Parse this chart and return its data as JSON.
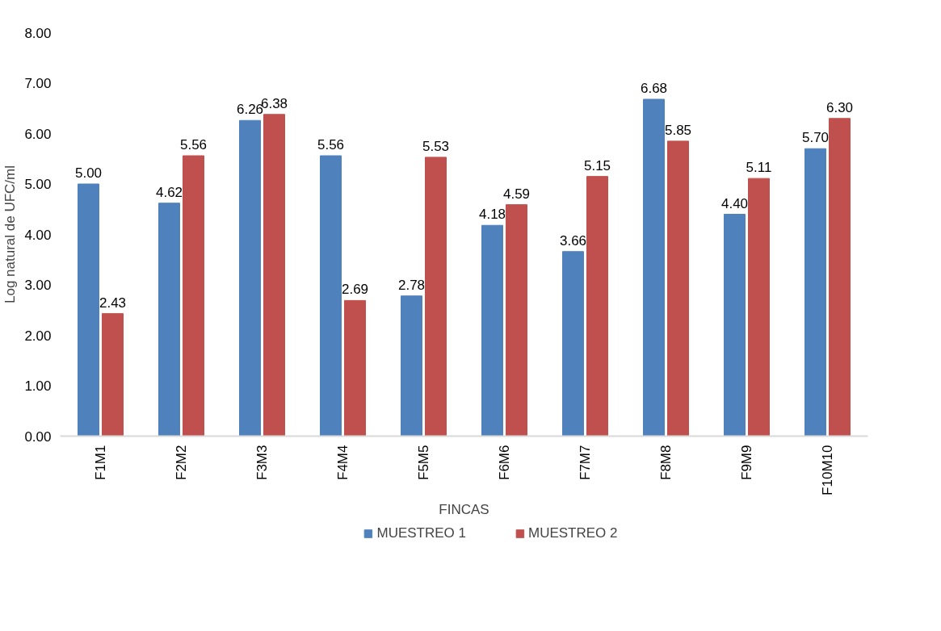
{
  "chart_data": {
    "type": "bar",
    "xlabel": "FINCAS",
    "ylabel": "Log natural de UFC/ml",
    "categories": [
      "F1M1",
      "F2M2",
      "F3M3",
      "F4M4",
      "F5M5",
      "F6M6",
      "F7M7",
      "F8M8",
      "F9M9",
      "F10M10"
    ],
    "series": [
      {
        "name": "MUESTREO 1",
        "color": "#4f81bd",
        "values": [
          5.0,
          4.62,
          6.26,
          5.56,
          2.78,
          4.18,
          3.66,
          6.68,
          4.4,
          5.7
        ],
        "value_labels": [
          "5.00",
          "4.62",
          "6.26",
          "5.56",
          "2.78",
          "4.18",
          "3.66",
          "6.68",
          "4.40",
          "5.70"
        ]
      },
      {
        "name": "MUESTREO 2",
        "color": "#c0504d",
        "values": [
          2.43,
          5.56,
          6.38,
          2.69,
          5.53,
          4.59,
          5.15,
          5.85,
          5.11,
          6.3
        ],
        "value_labels": [
          "2.43",
          "5.56",
          "6.38",
          "2.69",
          "5.53",
          "4.59",
          "5.15",
          "5.85",
          "5.11",
          "6.30"
        ]
      }
    ],
    "ylim": [
      0,
      8
    ],
    "yticks": [
      {
        "value": 0,
        "label": "0.00"
      },
      {
        "value": 1,
        "label": "1.00"
      },
      {
        "value": 2,
        "label": "2.00"
      },
      {
        "value": 3,
        "label": "3.00"
      },
      {
        "value": 4,
        "label": "4.00"
      },
      {
        "value": 5,
        "label": "5.00"
      },
      {
        "value": 6,
        "label": "6.00"
      },
      {
        "value": 7,
        "label": "7.00"
      },
      {
        "value": 8,
        "label": "8.00"
      }
    ],
    "grid": false,
    "legend": "bottom"
  }
}
